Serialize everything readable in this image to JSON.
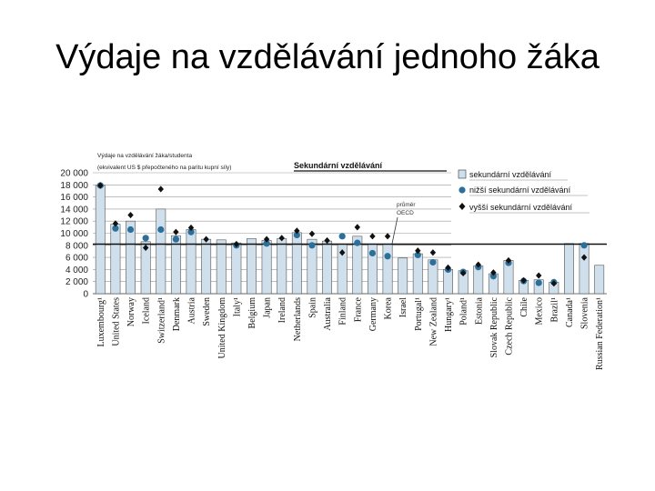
{
  "slide": {
    "title": "Výdaje na vzdělávání jednoho žáka"
  },
  "chart_data": {
    "type": "bar",
    "title": "Sekundární vzdělávání",
    "ylabel_line1": "Výdaje na vzdělávání žáka/studenta",
    "ylabel_line2": "(ekvivalent US $ přepočteného na paritu kupní síly)",
    "ylim": [
      0,
      20000
    ],
    "yticks": [
      "0",
      "2 000",
      "4 000",
      "6 000",
      "8 000",
      "10 000",
      "12 000",
      "14 000",
      "16 000",
      "18 000",
      "20 000"
    ],
    "oecd_label_line1": "průměr",
    "oecd_label_line2": "OECD",
    "oecd_average": 8200,
    "legend_position": "top-right",
    "colors": {
      "bar": "#cfe0ec",
      "lower": "#2c6f9a",
      "upper": "#111111"
    },
    "categories": [
      "Luxembourg¹",
      "United States",
      "Norway",
      "Iceland",
      "Switzerland¹",
      "Denmark",
      "Austria",
      "Sweden",
      "United Kingdom",
      "Italy¹",
      "Belgium",
      "Japan",
      "Ireland",
      "Netherlands",
      "Spain",
      "Australia",
      "Finland",
      "France",
      "Germany",
      "Korea",
      "Israel",
      "Portugal¹",
      "New Zealand",
      "Hungary¹",
      "Poland¹",
      "Estonia",
      "Slovak Republic",
      "Czech Republic",
      "Chile",
      "Mexico",
      "Brazil¹",
      "Canada¹",
      "Slovenia",
      "Russian Federation¹"
    ],
    "series": [
      {
        "name": "sekundární vzdělávání",
        "kind": "bar",
        "values": [
          17900,
          11500,
          12000,
          8600,
          14000,
          9600,
          10600,
          9000,
          8900,
          8400,
          9100,
          8800,
          9100,
          10100,
          9000,
          8700,
          8200,
          9500,
          8200,
          8200,
          5900,
          6600,
          5600,
          4000,
          3800,
          4600,
          3300,
          5500,
          2200,
          2300,
          1900,
          8300,
          8300,
          4700
        ]
      },
      {
        "name": "nižší sekundární vzdělávání",
        "kind": "circle",
        "values": [
          17900,
          10800,
          10600,
          9200,
          10600,
          9000,
          10200,
          null,
          null,
          8000,
          null,
          8300,
          null,
          9700,
          8000,
          null,
          9500,
          8400,
          6700,
          6200,
          null,
          6400,
          5200,
          4000,
          3600,
          4400,
          2900,
          5100,
          2100,
          1800,
          1900,
          null,
          8000,
          null
        ]
      },
      {
        "name": "vyšší sekundární vzdělávání",
        "kind": "diamond",
        "values": [
          17900,
          11600,
          13000,
          7600,
          17300,
          10200,
          10900,
          9000,
          null,
          8200,
          null,
          9000,
          9200,
          10400,
          9900,
          8800,
          6800,
          11000,
          9500,
          9500,
          null,
          7100,
          6800,
          4300,
          3400,
          4800,
          3500,
          5500,
          2200,
          3000,
          1700,
          null,
          6000,
          null
        ]
      }
    ]
  }
}
